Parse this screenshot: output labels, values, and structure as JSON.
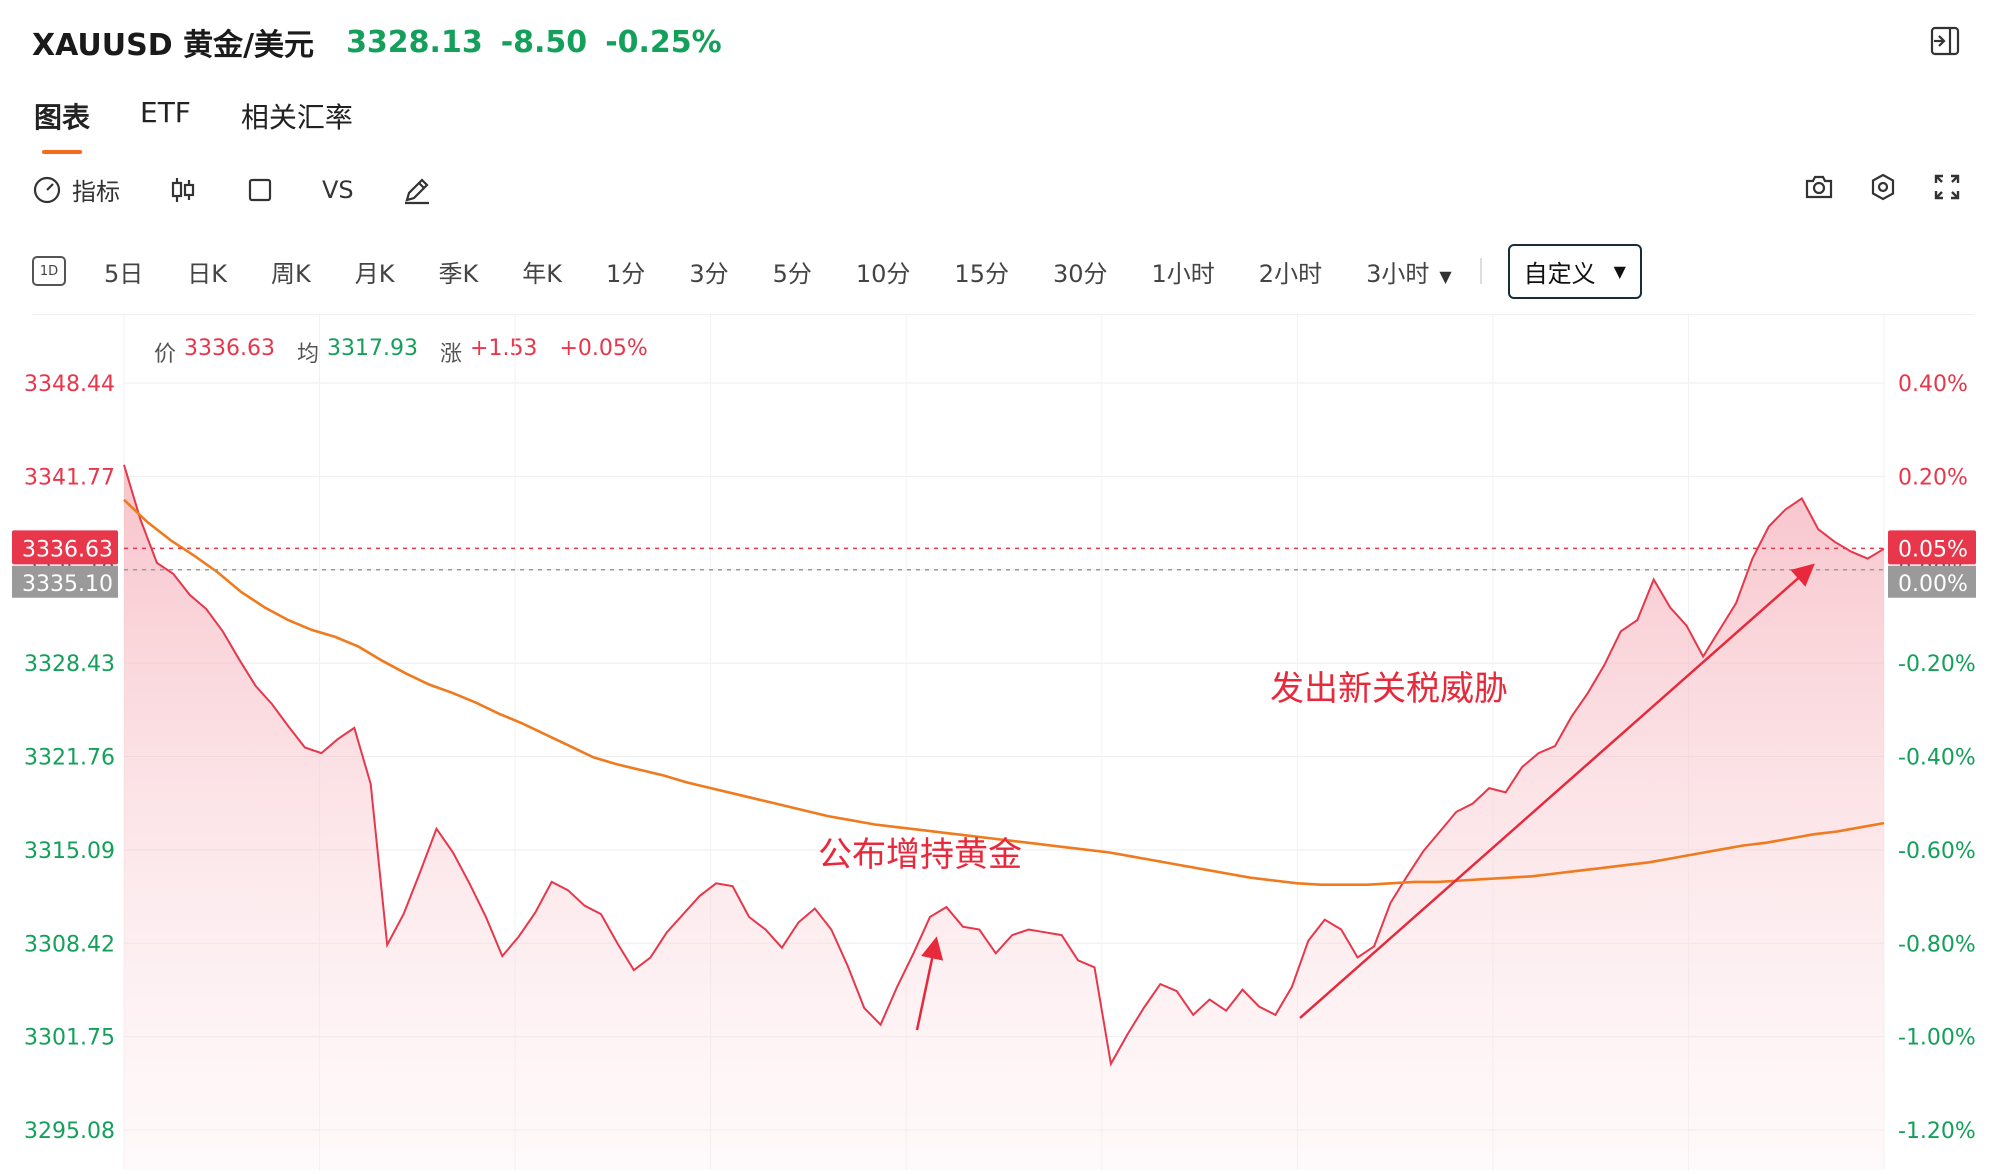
{
  "header": {
    "symbol": "XAUUSD 黄金/美元",
    "price": "3328.13",
    "change": "-8.50",
    "change_pct": "-0.25%",
    "collapse_icon": "sidebar-collapse-icon"
  },
  "tabs": [
    {
      "label": "图表",
      "active": true
    },
    {
      "label": "ETF",
      "active": false
    },
    {
      "label": "相关汇率",
      "active": false
    }
  ],
  "toolbar": {
    "indicator_label": "指标",
    "vs_label": "VS",
    "icons": [
      "indicator-gauge-icon",
      "candlestick-icon",
      "square-icon",
      "pencil-icon",
      "camera-icon",
      "settings-icon",
      "fullscreen-icon"
    ]
  },
  "periods": {
    "icon_text": "1D",
    "items": [
      "5日",
      "日K",
      "周K",
      "月K",
      "季K",
      "年K",
      "1分",
      "3分",
      "5分",
      "10分",
      "15分",
      "30分",
      "1小时",
      "2小时",
      "3小时"
    ],
    "custom_label": "自定义"
  },
  "info_bar": {
    "price_label": "价",
    "price": "3336.63",
    "avg_label": "均",
    "avg": "3317.93",
    "change_label": "涨",
    "change": "+1.53",
    "change_pct": "+0.05%"
  },
  "colors": {
    "up": "#e8364b",
    "down": "#14a05a",
    "price_line": "#e8364b",
    "avg_line": "#f07a1e",
    "accent": "#f26a1b"
  },
  "chart_data": {
    "type": "area",
    "ylim": [
      3295.08,
      3348.44
    ],
    "y_ticks": [
      "3348.44",
      "3341.77",
      "3335.10",
      "3328.43",
      "3321.76",
      "3315.09",
      "3308.42",
      "3301.75",
      "3295.08"
    ],
    "pct_ticks": [
      "0.40%",
      "0.20%",
      "0.00%",
      "-0.20%",
      "-0.40%",
      "-0.60%",
      "-0.80%",
      "-1.00%",
      "-1.20%"
    ],
    "prev_close": 3335.1,
    "current_price": 3336.63,
    "current_price_label": "3336.63",
    "current_pct_label": "0.05%",
    "series": [
      {
        "values": [
          3342.6,
          3338.7,
          3335.6,
          3334.8,
          3333.3,
          3332.3,
          3330.7,
          3328.7,
          3326.8,
          3325.5,
          3323.9,
          3322.4,
          3322.0,
          3323.0,
          3323.8,
          3319.8,
          3308.3,
          3310.5,
          3313.5,
          3316.6,
          3314.9,
          3312.7,
          3310.3,
          3307.5,
          3308.9,
          3310.6,
          3312.8,
          3312.2,
          3311.1,
          3310.5,
          3308.4,
          3306.5,
          3307.4,
          3309.2,
          3310.5,
          3311.8,
          3312.7,
          3312.5,
          3310.3,
          3309.4,
          3308.1,
          3309.9,
          3310.9,
          3309.4,
          3306.8,
          3303.8,
          3302.6,
          3305.3,
          3307.7,
          3310.3,
          3311.0,
          3309.6,
          3309.4,
          3307.7,
          3309.0,
          3309.4,
          3309.2,
          3309.0,
          3307.2,
          3306.7,
          3299.8,
          3301.9,
          3303.8,
          3305.5,
          3305.0,
          3303.3,
          3304.4,
          3303.6,
          3305.1,
          3303.9,
          3303.3,
          3305.3,
          3308.6,
          3310.1,
          3309.4,
          3307.4,
          3308.2,
          3311.3,
          3313.2,
          3315.0,
          3316.4,
          3317.8,
          3318.4,
          3319.5,
          3319.2,
          3321.0,
          3322.0,
          3322.5,
          3324.6,
          3326.3,
          3328.3,
          3330.7,
          3331.5,
          3334.4,
          3332.4,
          3331.1,
          3328.9,
          3330.8,
          3332.7,
          3335.9,
          3338.2,
          3339.4,
          3340.2,
          3338.0,
          3337.1,
          3336.4,
          3335.9,
          3336.6
        ]
      },
      {
        "values": [
          3340.1,
          3338.5,
          3337.2,
          3336.1,
          3334.9,
          3333.5,
          3332.4,
          3331.5,
          3330.8,
          3330.3,
          3329.6,
          3328.6,
          3327.7,
          3326.9,
          3326.3,
          3325.6,
          3324.8,
          3324.1,
          3323.3,
          3322.5,
          3321.7,
          3321.2,
          3320.8,
          3320.4,
          3319.9,
          3319.5,
          3319.1,
          3318.7,
          3318.3,
          3317.9,
          3317.5,
          3317.2,
          3316.9,
          3316.7,
          3316.5,
          3316.3,
          3316.1,
          3315.9,
          3315.7,
          3315.5,
          3315.3,
          3315.1,
          3314.9,
          3314.6,
          3314.3,
          3314.0,
          3313.7,
          3313.4,
          3313.1,
          3312.9,
          3312.7,
          3312.6,
          3312.6,
          3312.6,
          3312.7,
          3312.8,
          3312.8,
          3312.9,
          3313.0,
          3313.1,
          3313.2,
          3313.4,
          3313.6,
          3313.8,
          3314.0,
          3314.2,
          3314.5,
          3314.8,
          3315.1,
          3315.4,
          3315.6,
          3315.9,
          3316.2,
          3316.4,
          3316.7,
          3317.0
        ]
      }
    ]
  },
  "annotations": [
    {
      "text": "公布增持黄金"
    },
    {
      "text": "发出新关税威胁"
    }
  ]
}
